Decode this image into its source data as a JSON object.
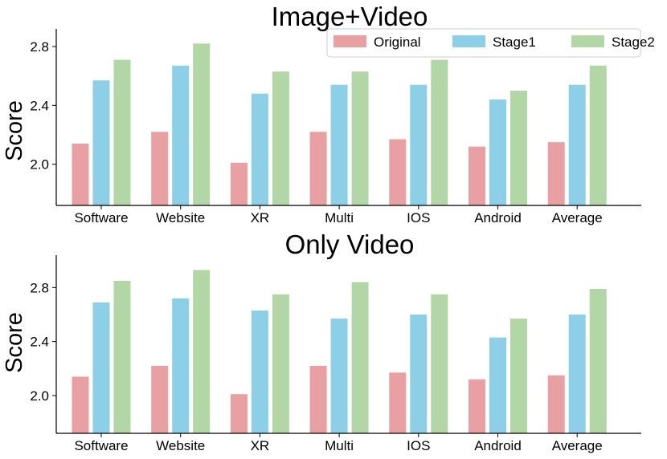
{
  "colors": {
    "Original": "#e8a0a2",
    "Stage1": "#8ccfe6",
    "Stage2": "#b3d6a6"
  },
  "chart_data": [
    {
      "type": "bar",
      "title": "Image+Video",
      "ylabel": "Score",
      "xlabel": "",
      "categories": [
        "Software",
        "Website",
        "XR",
        "Multi",
        "IOS",
        "Android",
        "Average"
      ],
      "ylim": [
        1.72,
        2.92
      ],
      "yticks": [
        2.0,
        2.4,
        2.8
      ],
      "ytick_labels": [
        "2.0",
        "2.4",
        "2.8"
      ],
      "legend": {
        "placement": "top-right",
        "entries": [
          "Original",
          "Stage1",
          "Stage2"
        ]
      },
      "series": [
        {
          "name": "Original",
          "values": [
            2.14,
            2.22,
            2.01,
            2.22,
            2.17,
            2.12,
            2.15
          ]
        },
        {
          "name": "Stage1",
          "values": [
            2.57,
            2.67,
            2.48,
            2.54,
            2.54,
            2.44,
            2.54
          ]
        },
        {
          "name": "Stage2",
          "values": [
            2.71,
            2.82,
            2.63,
            2.63,
            2.71,
            2.5,
            2.67
          ]
        }
      ]
    },
    {
      "type": "bar",
      "title": "Only Video",
      "ylabel": "Score",
      "xlabel": "",
      "categories": [
        "Software",
        "Website",
        "XR",
        "Multi",
        "IOS",
        "Android",
        "Average"
      ],
      "ylim": [
        1.72,
        3.04
      ],
      "yticks": [
        2.0,
        2.4,
        2.8
      ],
      "ytick_labels": [
        "2.0",
        "2.4",
        "2.8"
      ],
      "series": [
        {
          "name": "Original",
          "values": [
            2.14,
            2.22,
            2.01,
            2.22,
            2.17,
            2.12,
            2.15
          ]
        },
        {
          "name": "Stage1",
          "values": [
            2.69,
            2.72,
            2.63,
            2.57,
            2.6,
            2.43,
            2.6
          ]
        },
        {
          "name": "Stage2",
          "values": [
            2.85,
            2.93,
            2.75,
            2.84,
            2.75,
            2.57,
            2.79
          ]
        }
      ]
    }
  ]
}
